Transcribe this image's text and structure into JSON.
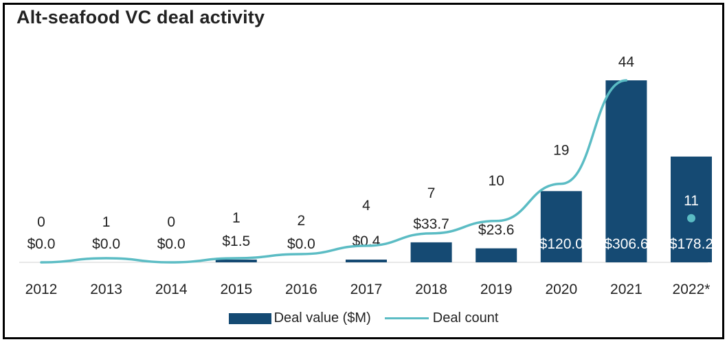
{
  "chart_data": {
    "type": "bar",
    "title": "Alt-seafood VC deal activity",
    "categories": [
      "2012",
      "2013",
      "2014",
      "2015",
      "2016",
      "2017",
      "2018",
      "2019",
      "2020",
      "2021",
      "2022*"
    ],
    "series": [
      {
        "name": "Deal value ($M)",
        "type": "bar",
        "values": [
          0.0,
          0.0,
          0.0,
          1.5,
          0.0,
          0.4,
          33.7,
          23.6,
          120.0,
          306.6,
          178.2
        ],
        "labels": [
          "$0.0",
          "$0.0",
          "$0.0",
          "$1.5",
          "$0.0",
          "$0.4",
          "$33.7",
          "$23.6",
          "$120.0",
          "$306.6",
          "$178.2"
        ],
        "color": "#154a73"
      },
      {
        "name": "Deal count",
        "type": "line",
        "values": [
          0,
          1,
          0,
          1,
          2,
          4,
          7,
          10,
          19,
          44,
          11
        ],
        "labels": [
          "0",
          "1",
          "0",
          "1",
          "2",
          "4",
          "7",
          "10",
          "19",
          "44",
          "11"
        ],
        "color": "#5bbcc4"
      }
    ],
    "xlabel": "",
    "ylabel": "",
    "legend": "bottom-center"
  }
}
